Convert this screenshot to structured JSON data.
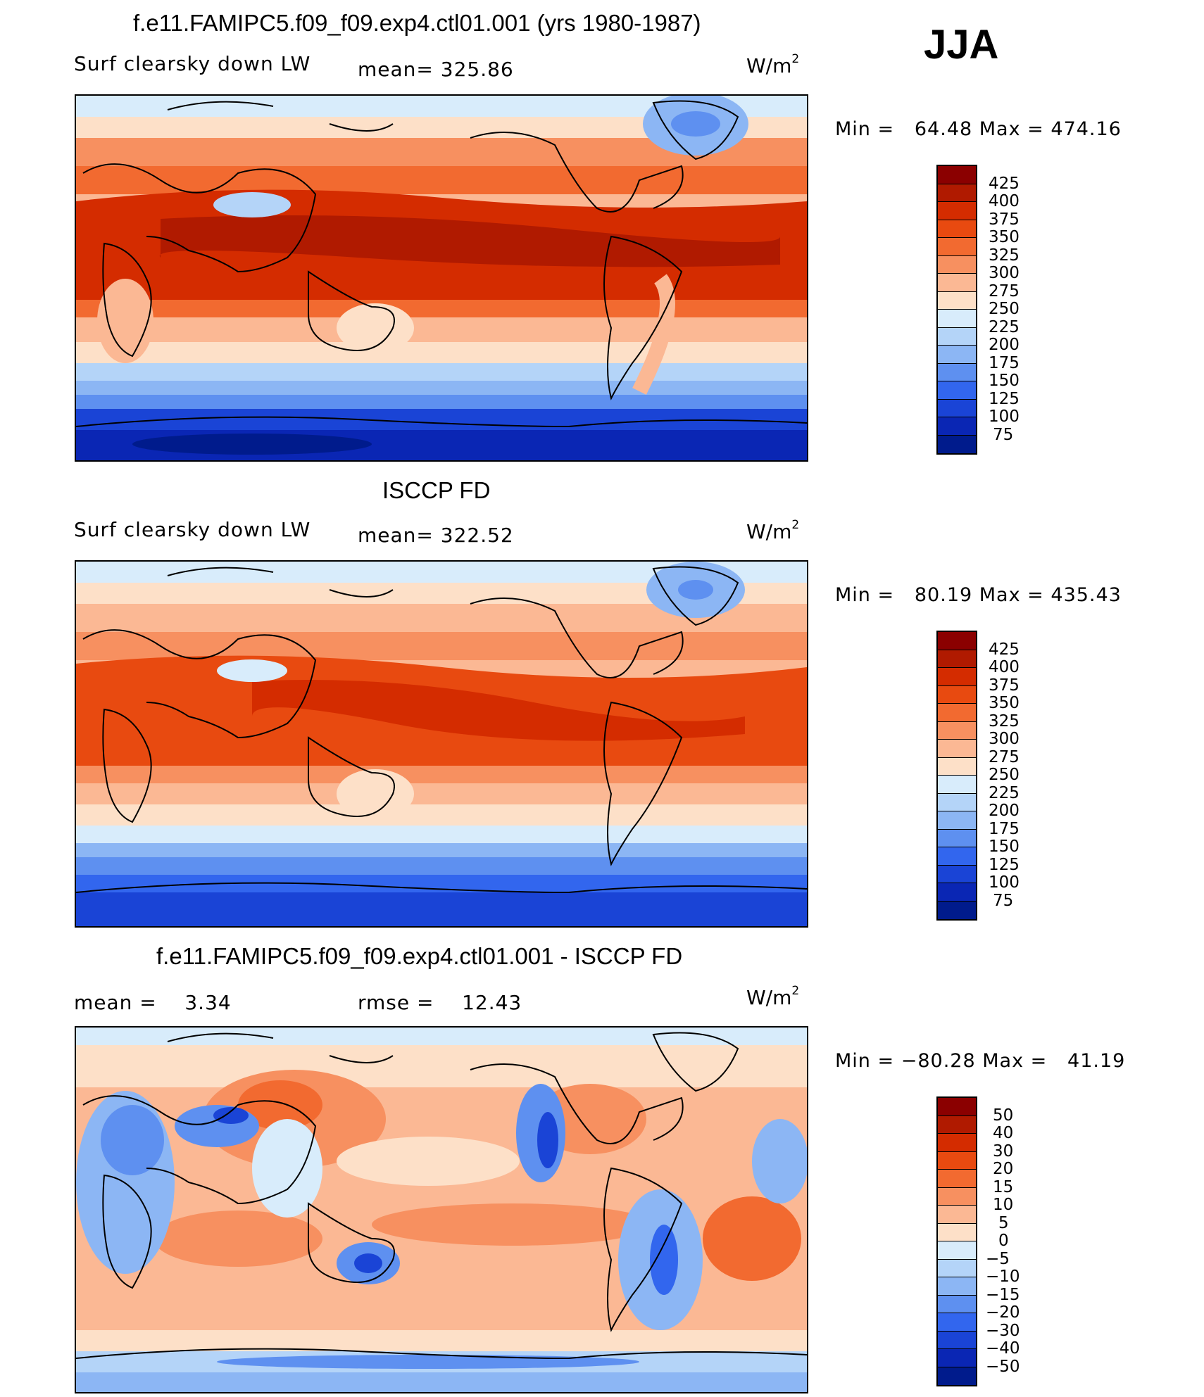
{
  "season": "JJA",
  "panels": [
    {
      "title": "f.e11.FAMIPC5.f09_f09.exp4.ctl01.001 (yrs 1980-1987)",
      "variable": "Surf clearsky down LW",
      "stat1": "mean= 325.86",
      "stat2": "",
      "units": "W/m",
      "units_exp": "2",
      "min_label": "Min =",
      "min_value": "64.48",
      "max_label": "Max =",
      "max_value": "474.16",
      "colorbar": {
        "levels": [
          "425",
          "400",
          "375",
          "350",
          "325",
          "300",
          "275",
          "250",
          "225",
          "200",
          "175",
          "150",
          "125",
          "100",
          "75"
        ],
        "colors": [
          "#8b0000",
          "#b01a00",
          "#d42c00",
          "#e84a10",
          "#f26a30",
          "#f79060",
          "#fbb894",
          "#fde0c8",
          "#d8ecfb",
          "#b4d4f8",
          "#8cb6f4",
          "#5e90f0",
          "#3266ee",
          "#1a44d6",
          "#0a26b4",
          "#001b8c"
        ]
      }
    },
    {
      "title": "ISCCP FD",
      "variable": "Surf clearsky down LW",
      "stat1": "mean= 322.52",
      "stat2": "",
      "units": "W/m",
      "units_exp": "2",
      "min_label": "Min =",
      "min_value": "80.19",
      "max_label": "Max =",
      "max_value": "435.43",
      "colorbar": {
        "levels": [
          "425",
          "400",
          "375",
          "350",
          "325",
          "300",
          "275",
          "250",
          "225",
          "200",
          "175",
          "150",
          "125",
          "100",
          "75"
        ],
        "colors": [
          "#8b0000",
          "#b01a00",
          "#d42c00",
          "#e84a10",
          "#f26a30",
          "#f79060",
          "#fbb894",
          "#fde0c8",
          "#d8ecfb",
          "#b4d4f8",
          "#8cb6f4",
          "#5e90f0",
          "#3266ee",
          "#1a44d6",
          "#0a26b4",
          "#001b8c"
        ]
      }
    },
    {
      "title": "f.e11.FAMIPC5.f09_f09.exp4.ctl01.001 - ISCCP FD",
      "variable": "",
      "stat1": "mean =    3.34",
      "stat2": "rmse =    12.43",
      "units": "W/m",
      "units_exp": "2",
      "min_label": "Min =",
      "min_value": "−80.28",
      "max_label": "Max =",
      "max_value": "41.19",
      "colorbar": {
        "levels": [
          "50",
          "40",
          "30",
          "20",
          "15",
          "10",
          "5",
          "0",
          "−5",
          "−10",
          "−15",
          "−20",
          "−30",
          "−40",
          "−50"
        ],
        "colors": [
          "#8b0000",
          "#b01a00",
          "#d42c00",
          "#e84a10",
          "#f26a30",
          "#f79060",
          "#fbb894",
          "#fde0c8",
          "#d8ecfb",
          "#b4d4f8",
          "#8cb6f4",
          "#5e90f0",
          "#3266ee",
          "#1a44d6",
          "#0a26b4",
          "#001b8c"
        ]
      }
    }
  ]
}
